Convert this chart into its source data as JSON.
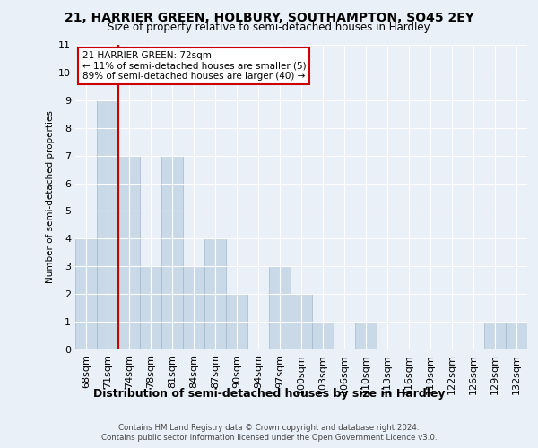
{
  "title_line1": "21, HARRIER GREEN, HOLBURY, SOUTHAMPTON, SO45 2EY",
  "title_line2": "Size of property relative to semi-detached houses in Hardley",
  "xlabel": "Distribution of semi-detached houses by size in Hardley",
  "ylabel": "Number of semi-detached properties",
  "categories": [
    "68sqm",
    "71sqm",
    "74sqm",
    "78sqm",
    "81sqm",
    "84sqm",
    "87sqm",
    "90sqm",
    "94sqm",
    "97sqm",
    "100sqm",
    "103sqm",
    "106sqm",
    "110sqm",
    "113sqm",
    "116sqm",
    "119sqm",
    "122sqm",
    "126sqm",
    "129sqm",
    "132sqm"
  ],
  "values": [
    4,
    9,
    7,
    3,
    7,
    3,
    4,
    2,
    0,
    3,
    2,
    1,
    0,
    1,
    0,
    0,
    0,
    0,
    0,
    1,
    1
  ],
  "bar_color": "#c9d9e8",
  "bar_edge_color": "#a0b8cc",
  "red_line_x": 1.5,
  "annotation_title": "21 HARRIER GREEN: 72sqm",
  "annotation_line1": "← 11% of semi-detached houses are smaller (5)",
  "annotation_line2": "89% of semi-detached houses are larger (40) →",
  "annotation_box_facecolor": "#ffffff",
  "annotation_border_color": "#cc0000",
  "footer_line1": "Contains HM Land Registry data © Crown copyright and database right 2024.",
  "footer_line2": "Contains public sector information licensed under the Open Government Licence v3.0.",
  "ylim": [
    0,
    11
  ],
  "yticks": [
    0,
    1,
    2,
    3,
    4,
    5,
    6,
    7,
    8,
    9,
    10,
    11
  ],
  "background_color": "#eaf0f8",
  "plot_background": "#eaf0f8"
}
